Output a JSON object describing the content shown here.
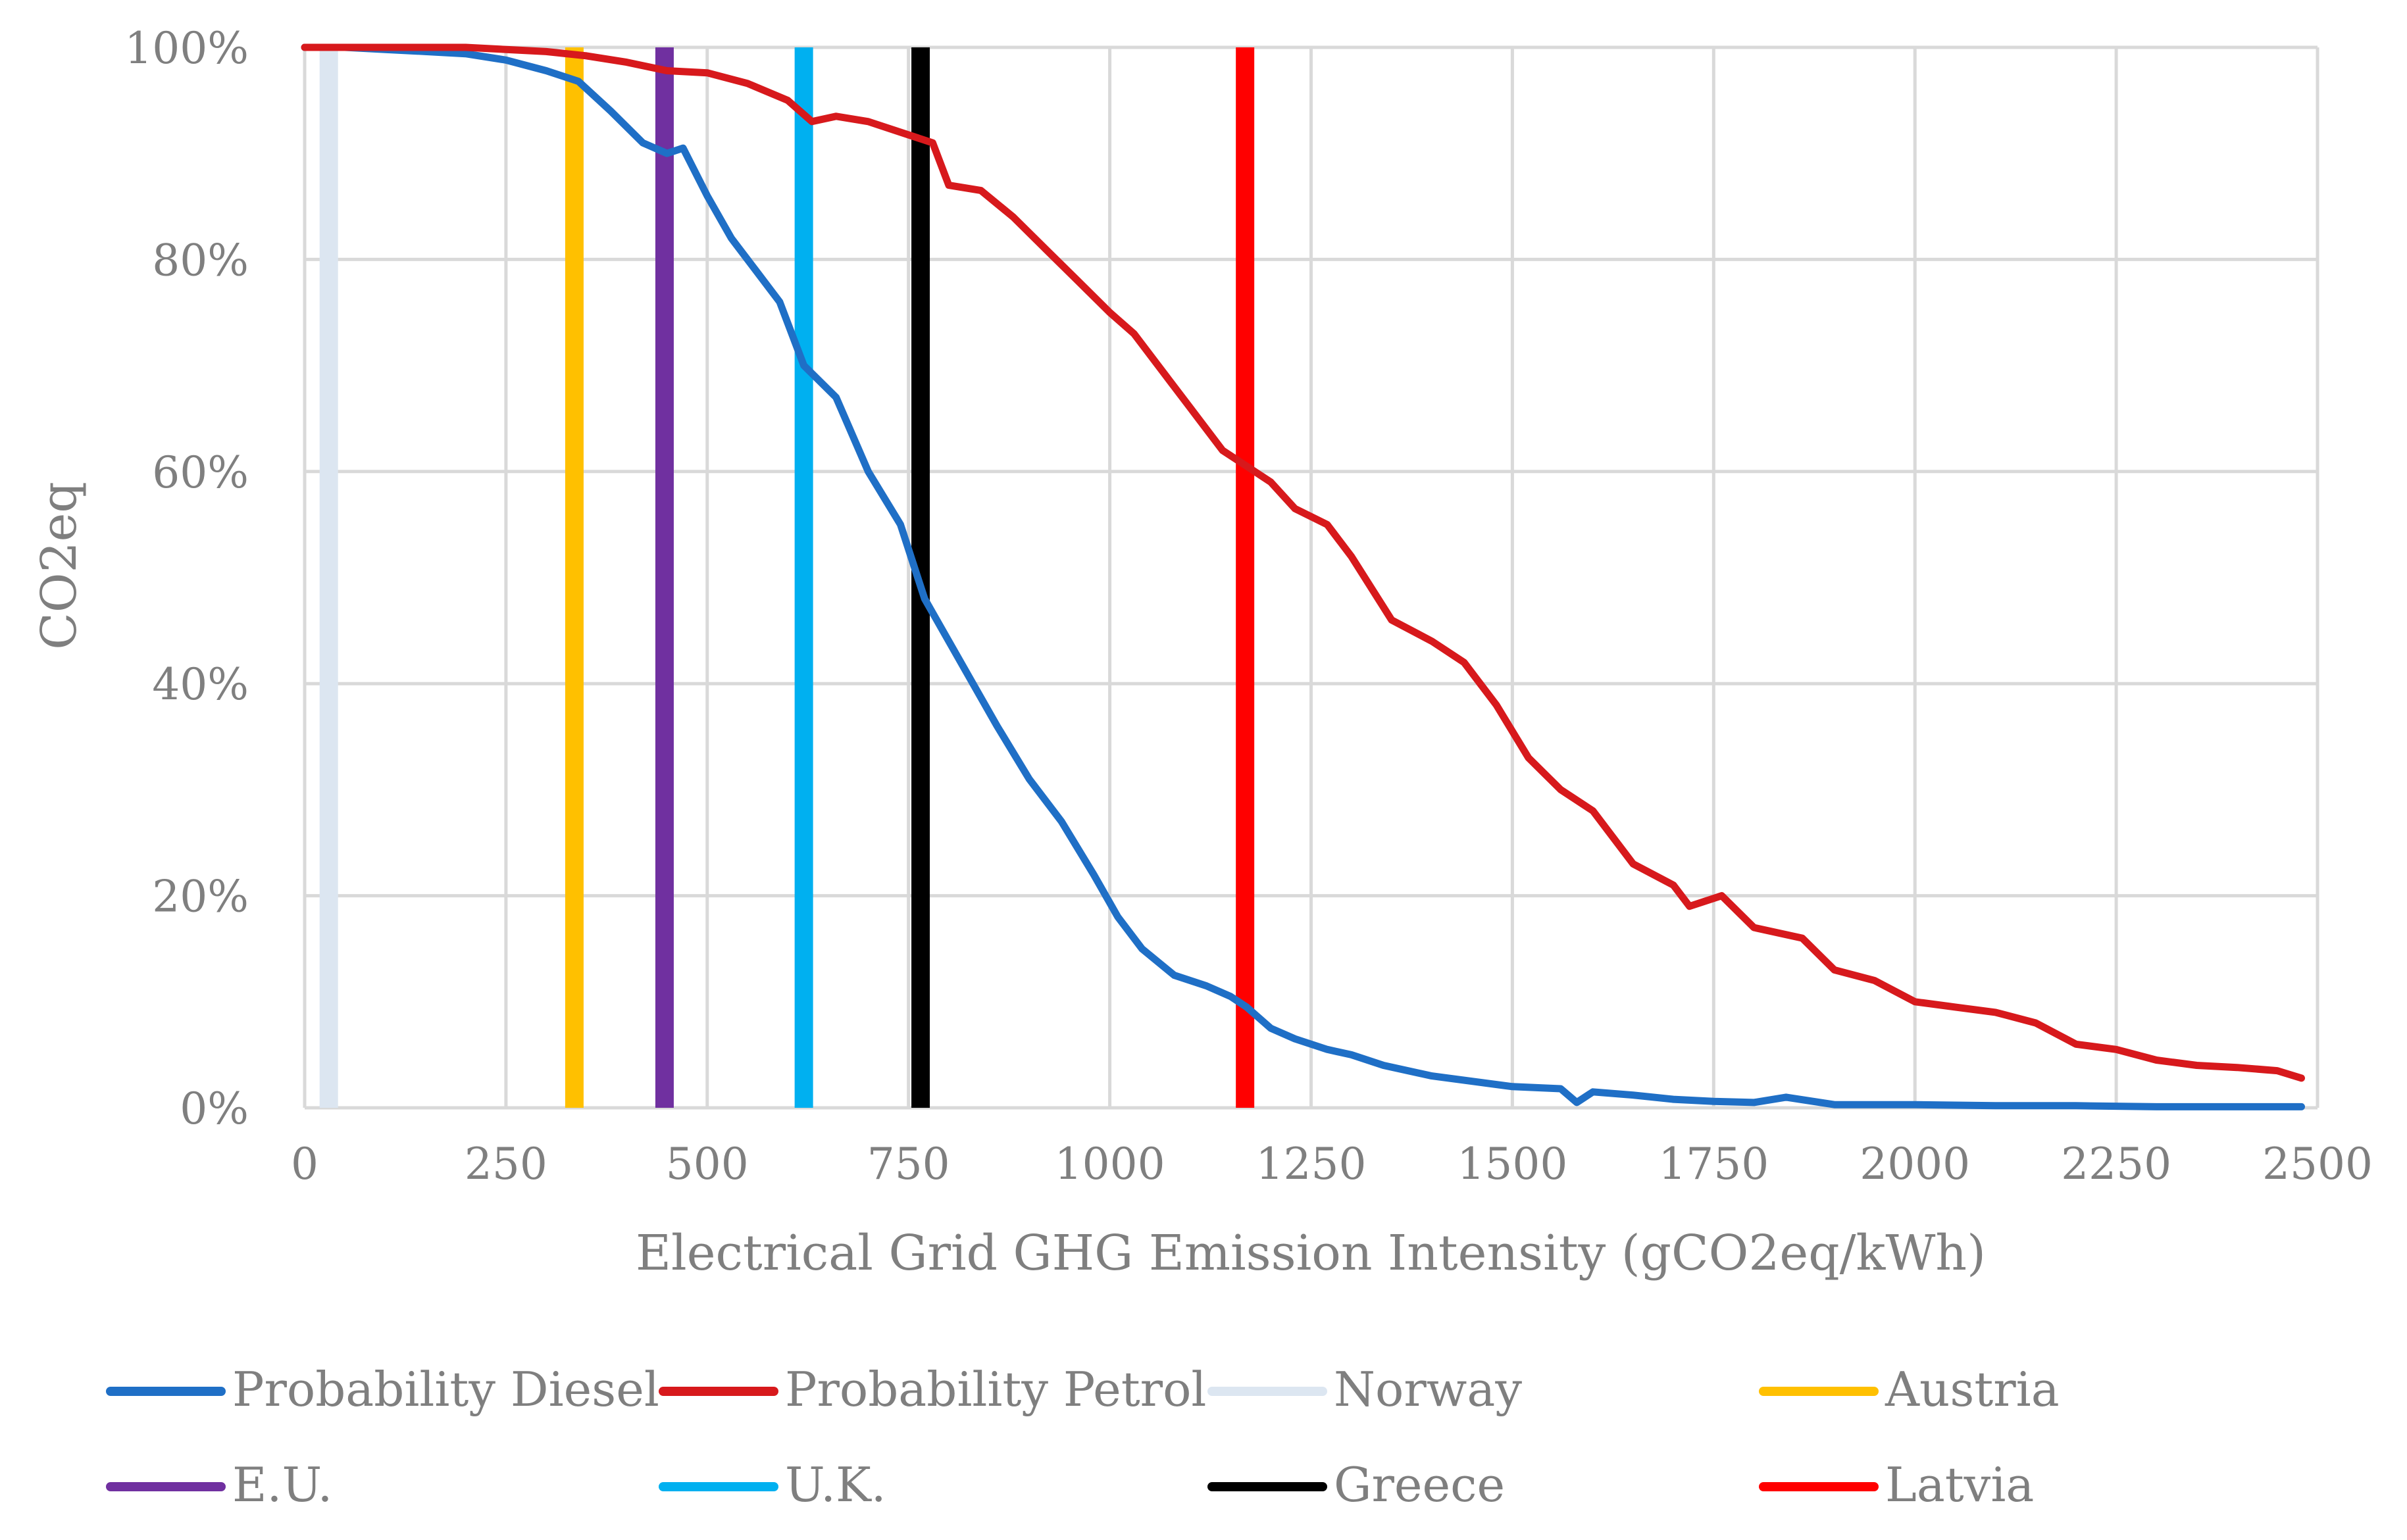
{
  "chart_data": {
    "type": "line",
    "title": "",
    "xlabel": "Electrical Grid GHG Emission Intensity (gCO2eq/kWh)",
    "ylabel": "CO2eq",
    "xlim": [
      0,
      2500
    ],
    "ylim": [
      0,
      100
    ],
    "x_ticks": [
      0,
      250,
      500,
      750,
      1000,
      1250,
      1500,
      1750,
      2000,
      2250,
      2500
    ],
    "x_tick_labels": [
      "0",
      "250",
      "500",
      "750",
      "1000",
      "1250",
      "1500",
      "1750",
      "2000",
      "2250",
      "2500"
    ],
    "y_ticks": [
      0,
      20,
      40,
      60,
      80,
      100
    ],
    "y_tick_labels": [
      "0%",
      "20%",
      "40%",
      "60%",
      "80%",
      "100%"
    ],
    "grid": true,
    "legend_position": "bottom",
    "series": [
      {
        "name": "Probability Diesel",
        "color": "#1f6fc6",
        "x": [
          0,
          50,
          100,
          150,
          200,
          250,
          300,
          340,
          380,
          420,
          450,
          470,
          500,
          530,
          560,
          590,
          620,
          660,
          700,
          740,
          770,
          800,
          830,
          860,
          900,
          940,
          980,
          1010,
          1040,
          1080,
          1120,
          1150,
          1170,
          1200,
          1230,
          1270,
          1300,
          1340,
          1400,
          1450,
          1500,
          1560,
          1580,
          1600,
          1650,
          1700,
          1750,
          1800,
          1840,
          1900,
          2000,
          2100,
          2200,
          2300,
          2400,
          2480
        ],
        "y": [
          100,
          100,
          99.8,
          99.6,
          99.4,
          98.8,
          97.8,
          96.8,
          94,
          91,
          90,
          90.5,
          86,
          82,
          79,
          76,
          70,
          67,
          60,
          55,
          48,
          44,
          40,
          36,
          31,
          27,
          22,
          18,
          15,
          12.5,
          11.5,
          10.5,
          9.5,
          7.5,
          6.5,
          5.5,
          5,
          4,
          3,
          2.5,
          2,
          1.8,
          0.5,
          1.5,
          1.2,
          0.8,
          0.6,
          0.5,
          1,
          0.3,
          0.3,
          0.2,
          0.2,
          0.1,
          0.1,
          0.1
        ]
      },
      {
        "name": "Probability Petrol",
        "color": "#d7191c",
        "x": [
          0,
          100,
          200,
          300,
          350,
          400,
          450,
          500,
          550,
          600,
          630,
          660,
          700,
          740,
          780,
          800,
          840,
          880,
          920,
          960,
          1000,
          1030,
          1060,
          1100,
          1140,
          1170,
          1200,
          1230,
          1270,
          1300,
          1350,
          1400,
          1440,
          1480,
          1520,
          1560,
          1600,
          1650,
          1700,
          1720,
          1760,
          1800,
          1860,
          1900,
          1950,
          2000,
          2050,
          2100,
          2150,
          2200,
          2250,
          2300,
          2350,
          2400,
          2450,
          2480
        ],
        "y": [
          100,
          100,
          100,
          99.6,
          99.2,
          98.6,
          97.8,
          97.6,
          96.6,
          95,
          93,
          93.5,
          93,
          92,
          91,
          87,
          86.5,
          84,
          81,
          78,
          75,
          73,
          70,
          66,
          62,
          60.5,
          59,
          56.5,
          55,
          52,
          46,
          44,
          42,
          38,
          33,
          30,
          28,
          23,
          21,
          19,
          20,
          17,
          16,
          13,
          12,
          10,
          9.5,
          9,
          8,
          6,
          5.5,
          4.5,
          4,
          3.8,
          3.5,
          2.8
        ]
      }
    ],
    "vertical_lines": [
      {
        "name": "Norway",
        "x": 30,
        "color": "#dce6f1"
      },
      {
        "name": "Austria",
        "x": 335,
        "color": "#ffc000"
      },
      {
        "name": "E.U.",
        "x": 447,
        "color": "#7030a0"
      },
      {
        "name": "U.K.",
        "x": 620,
        "color": "#00b0f0"
      },
      {
        "name": "Greece",
        "x": 765,
        "color": "#000000"
      },
      {
        "name": "Latvia",
        "x": 1168,
        "color": "#ff0000"
      }
    ],
    "legend": [
      {
        "label": "Probability Diesel",
        "color": "#1f6fc6"
      },
      {
        "label": "Probability Petrol",
        "color": "#d7191c"
      },
      {
        "label": "Norway",
        "color": "#dce6f1"
      },
      {
        "label": "Austria",
        "color": "#ffc000"
      },
      {
        "label": "E.U.",
        "color": "#7030a0"
      },
      {
        "label": "U.K.",
        "color": "#00b0f0"
      },
      {
        "label": "Greece",
        "color": "#000000"
      },
      {
        "label": "Latvia",
        "color": "#ff0000"
      }
    ]
  }
}
